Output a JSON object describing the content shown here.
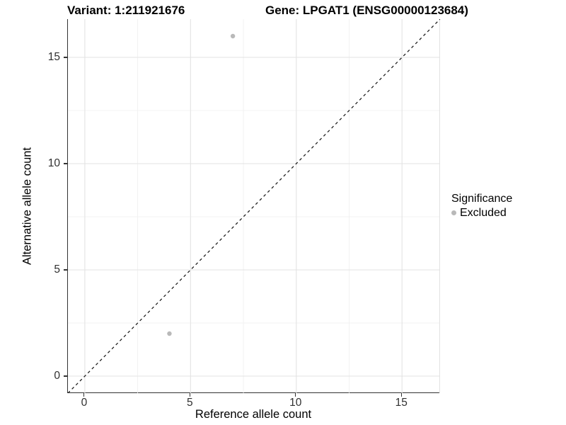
{
  "titles": {
    "left": "Variant: 1:211921676",
    "right": "Gene: LPGAT1 (ENSG00000123684)"
  },
  "axes": {
    "x": {
      "label": "Reference allele count"
    },
    "y": {
      "label": "Alternative allele count"
    }
  },
  "legend": {
    "title": "Significance",
    "items": [
      {
        "label": "Excluded",
        "color": "#b9b9b9",
        "marker": "circle"
      }
    ]
  },
  "chart_data": {
    "type": "scatter",
    "title": "Variant: 1:211921676 — Gene: LPGAT1 (ENSG00000123684)",
    "xlabel": "Reference allele count",
    "ylabel": "Alternative allele count",
    "xlim": [
      -0.8,
      16.8
    ],
    "ylim": [
      -0.8,
      16.8
    ],
    "x_ticks": [
      0,
      5,
      10,
      15
    ],
    "y_ticks": [
      0,
      5,
      10,
      15
    ],
    "x_minor_ticks": [
      2.5,
      7.5,
      12.5
    ],
    "y_minor_ticks": [
      2.5,
      7.5,
      12.5
    ],
    "grid": {
      "major_color": "#e3e3e3",
      "minor_color": "#efefef",
      "show_right_edge": true
    },
    "reference_line": {
      "type": "identity",
      "equation": "y = x",
      "style": "dashed",
      "color": "#1a1a1a"
    },
    "series": [
      {
        "name": "Excluded",
        "color": "#b9b9b9",
        "points": [
          {
            "x": 7,
            "y": 16
          },
          {
            "x": 4,
            "y": 2
          }
        ]
      }
    ],
    "legend_position": "right",
    "legend_title": "Significance"
  }
}
